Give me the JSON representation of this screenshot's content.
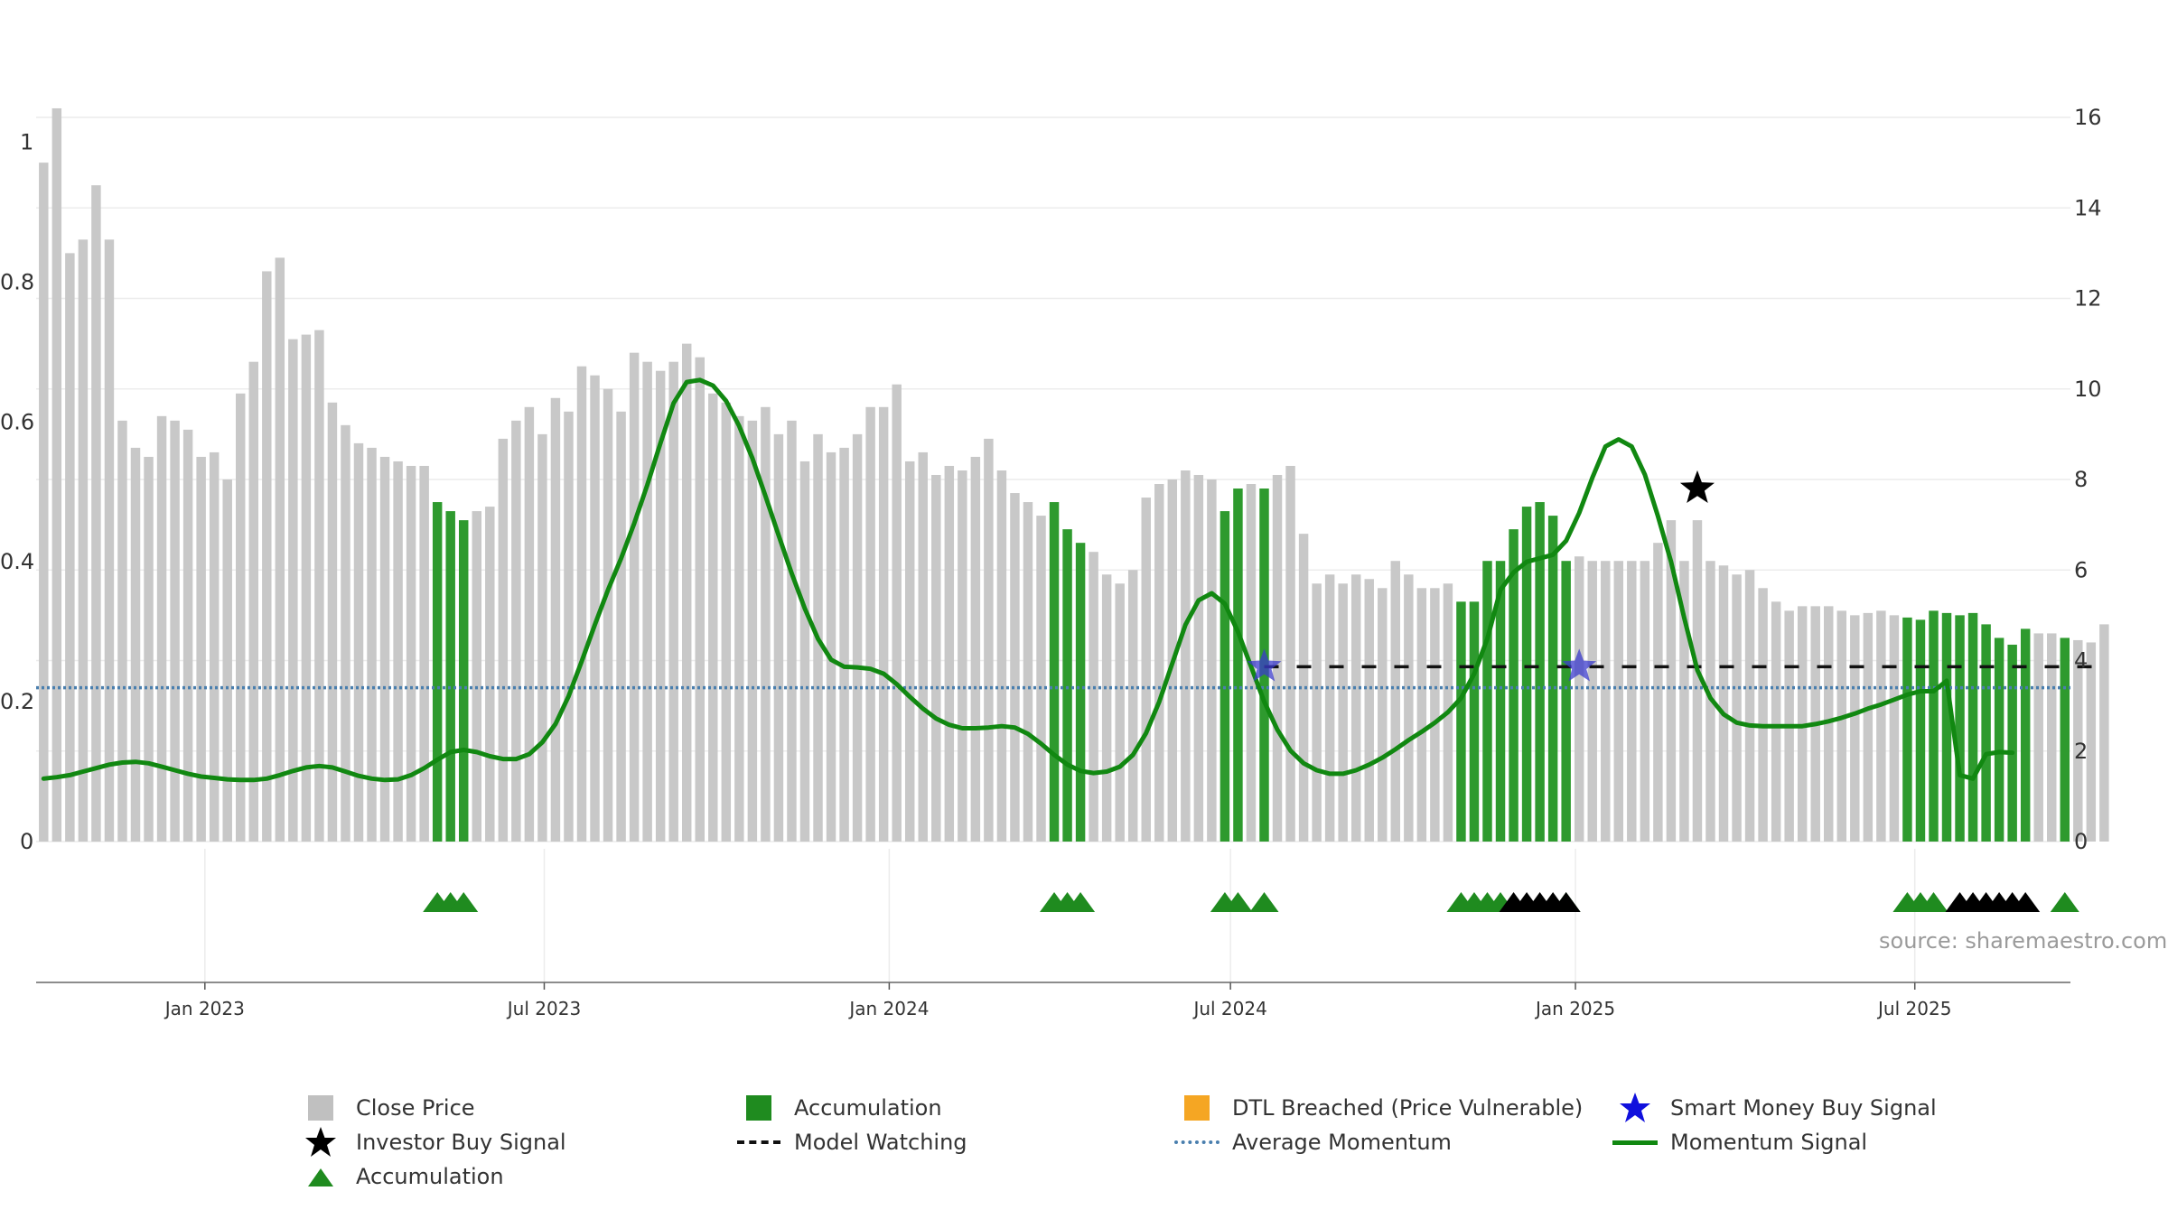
{
  "source_text": "source: sharemaestro.com",
  "colors": {
    "close_price": "#c8c8c8",
    "accumulation": "#2e9a2e",
    "investor_buy": "#000000",
    "smart_money": "#3b3bcc",
    "momentum": "#118811",
    "average_momentum": "#4a7fae",
    "dtl": "#f5a623",
    "grid": "#ececec"
  },
  "legend": [
    {
      "key": "close_price",
      "label": "Close Price",
      "symbol": "square",
      "color": "#c8c8c8"
    },
    {
      "key": "accumulation_bar",
      "label": "Accumulation",
      "symbol": "square",
      "color": "#1f8b1f"
    },
    {
      "key": "dtl",
      "label": "DTL Breached (Price Vulnerable)",
      "symbol": "square",
      "color": "#f5a623"
    },
    {
      "key": "smart_money",
      "label": "Smart Money Buy Signal",
      "symbol": "star",
      "color": "#1010dd"
    },
    {
      "key": "investor_buy",
      "label": "Investor Buy Signal",
      "symbol": "star",
      "color": "#000000"
    },
    {
      "key": "model_watching",
      "label": "Model Watching",
      "symbol": "dash",
      "color": "#111111"
    },
    {
      "key": "average_momentum",
      "label": "Average Momentum",
      "symbol": "dot",
      "color": "#4a7fae"
    },
    {
      "key": "momentum",
      "label": "Momentum Signal",
      "symbol": "line",
      "color": "#118811"
    },
    {
      "key": "accumulation_marker",
      "label": "Accumulation",
      "symbol": "triangle",
      "color": "#1f8b1f"
    }
  ],
  "chart_data": {
    "type": "bar",
    "title": "",
    "x_start": "2022-10-07",
    "x_step_days": 7,
    "x_range": [
      "2022-10-03",
      "2025-09-22"
    ],
    "x_ticks": [
      {
        "date": "2023-01-01",
        "label": "Jan 2023"
      },
      {
        "date": "2023-07-01",
        "label": "Jul 2023"
      },
      {
        "date": "2024-01-01",
        "label": "Jan 2024"
      },
      {
        "date": "2024-07-01",
        "label": "Jul 2024"
      },
      {
        "date": "2025-01-01",
        "label": "Jan 2025"
      },
      {
        "date": "2025-07-01",
        "label": "Jul 2025"
      }
    ],
    "y_left": {
      "range": [
        0,
        1.1
      ],
      "ticks": [
        0,
        0.2,
        0.4,
        0.6,
        0.8,
        1
      ],
      "tick_labels": [
        "0",
        "0.2",
        "0.4",
        "0.6",
        "0.8",
        "1"
      ]
    },
    "y_right": {
      "range": [
        0,
        16
      ],
      "ticks": [
        0,
        2,
        4,
        6,
        8,
        10,
        12,
        14,
        16
      ],
      "tick_labels": [
        "0",
        "2",
        "4",
        "6",
        "8",
        "10",
        "12",
        "14",
        "16"
      ]
    },
    "grid": true,
    "legend_position": "bottom",
    "close_price": [
      15.0,
      16.2,
      13.0,
      13.3,
      14.5,
      13.3,
      9.3,
      8.7,
      8.5,
      9.4,
      9.3,
      9.1,
      8.5,
      8.6,
      8.0,
      9.9,
      10.6,
      12.6,
      12.9,
      11.1,
      11.2,
      11.3,
      9.7,
      9.2,
      8.8,
      8.7,
      8.5,
      8.4,
      8.3,
      8.3,
      7.5,
      7.3,
      7.1,
      7.3,
      7.4,
      8.9,
      9.3,
      9.6,
      9.0,
      9.8,
      9.5,
      10.5,
      10.3,
      10.0,
      9.5,
      10.8,
      10.6,
      10.4,
      10.6,
      11.0,
      10.7,
      9.9,
      9.7,
      9.4,
      9.3,
      9.6,
      9.0,
      9.3,
      8.4,
      9.0,
      8.6,
      8.7,
      9.0,
      9.6,
      9.6,
      10.1,
      8.4,
      8.6,
      8.1,
      8.3,
      8.2,
      8.5,
      8.9,
      8.2,
      7.7,
      7.5,
      7.2,
      7.5,
      6.9,
      6.6,
      6.4,
      5.9,
      5.7,
      6.0,
      7.6,
      7.9,
      8.0,
      8.2,
      8.1,
      8.0,
      7.3,
      7.8,
      7.9,
      7.8,
      8.1,
      8.3,
      6.8,
      5.7,
      5.9,
      5.7,
      5.9,
      5.8,
      5.6,
      6.2,
      5.9,
      5.6,
      5.6,
      5.7,
      5.3,
      5.3,
      6.2,
      6.2,
      6.9,
      7.4,
      7.5,
      7.2,
      6.2,
      6.3,
      6.2,
      6.2,
      6.2,
      6.2,
      6.2,
      6.6,
      7.1,
      6.2,
      7.1,
      6.2,
      6.1,
      5.9,
      6.0,
      5.6,
      5.3,
      5.1,
      5.2,
      5.2,
      5.2,
      5.1,
      5.0,
      5.05,
      5.1,
      5.0,
      4.95,
      4.9,
      5.1,
      5.05,
      5.0,
      5.05,
      4.8,
      4.5,
      4.35,
      4.7,
      4.6,
      4.6,
      4.5,
      4.45,
      4.4,
      4.8
    ],
    "accumulation_indices": [
      30,
      31,
      32,
      77,
      78,
      79,
      90,
      91,
      93,
      108,
      109,
      110,
      111,
      112,
      113,
      114,
      115,
      116,
      142,
      143,
      144,
      145,
      146,
      147,
      148,
      149,
      150,
      151,
      154
    ],
    "momentum": [
      0.09,
      0.092,
      0.095,
      0.1,
      0.105,
      0.11,
      0.113,
      0.114,
      0.112,
      0.107,
      0.102,
      0.097,
      0.093,
      0.091,
      0.089,
      0.088,
      0.088,
      0.09,
      0.095,
      0.101,
      0.106,
      0.108,
      0.106,
      0.1,
      0.094,
      0.09,
      0.088,
      0.089,
      0.095,
      0.105,
      0.117,
      0.128,
      0.131,
      0.128,
      0.122,
      0.118,
      0.118,
      0.125,
      0.142,
      0.168,
      0.208,
      0.258,
      0.31,
      0.36,
      0.405,
      0.455,
      0.51,
      0.57,
      0.627,
      0.657,
      0.66,
      0.652,
      0.63,
      0.594,
      0.548,
      0.494,
      0.438,
      0.383,
      0.333,
      0.29,
      0.26,
      0.25,
      0.249,
      0.247,
      0.24,
      0.225,
      0.207,
      0.19,
      0.176,
      0.167,
      0.162,
      0.162,
      0.163,
      0.165,
      0.163,
      0.154,
      0.14,
      0.124,
      0.11,
      0.101,
      0.098,
      0.1,
      0.107,
      0.124,
      0.155,
      0.2,
      0.255,
      0.31,
      0.345,
      0.355,
      0.34,
      0.3,
      0.25,
      0.2,
      0.16,
      0.13,
      0.112,
      0.102,
      0.097,
      0.097,
      0.102,
      0.11,
      0.12,
      0.132,
      0.145,
      0.157,
      0.17,
      0.185,
      0.205,
      0.24,
      0.29,
      0.36,
      0.385,
      0.4,
      0.405,
      0.41,
      0.43,
      0.47,
      0.52,
      0.565,
      0.575,
      0.565,
      0.525,
      0.465,
      0.4,
      0.32,
      0.245,
      0.205,
      0.182,
      0.17,
      0.166,
      0.165,
      0.165,
      0.165,
      0.165,
      0.168,
      0.172,
      0.177,
      0.183,
      0.19,
      0.196,
      0.203,
      0.21,
      0.215,
      0.215,
      0.23,
      0.095,
      0.09,
      0.125,
      0.128,
      0.127
    ],
    "average_momentum": 0.22,
    "model_watching": {
      "value": 0.25,
      "start_index": 93,
      "end_index": 157
    },
    "smart_money_buy_signals": [
      {
        "index": 93,
        "value": 0.25
      },
      {
        "index": 117,
        "value": 0.25
      }
    ],
    "investor_buy_signals": [
      {
        "index": 126,
        "value": 0.505
      }
    ],
    "accumulation_markers": [
      30,
      31,
      32,
      77,
      78,
      79,
      90,
      91,
      93,
      108,
      109,
      110,
      111,
      116,
      142,
      143,
      144,
      154
    ],
    "investor_markers": [
      112,
      113,
      114,
      115,
      116,
      146,
      147,
      148,
      149,
      150,
      151
    ]
  }
}
